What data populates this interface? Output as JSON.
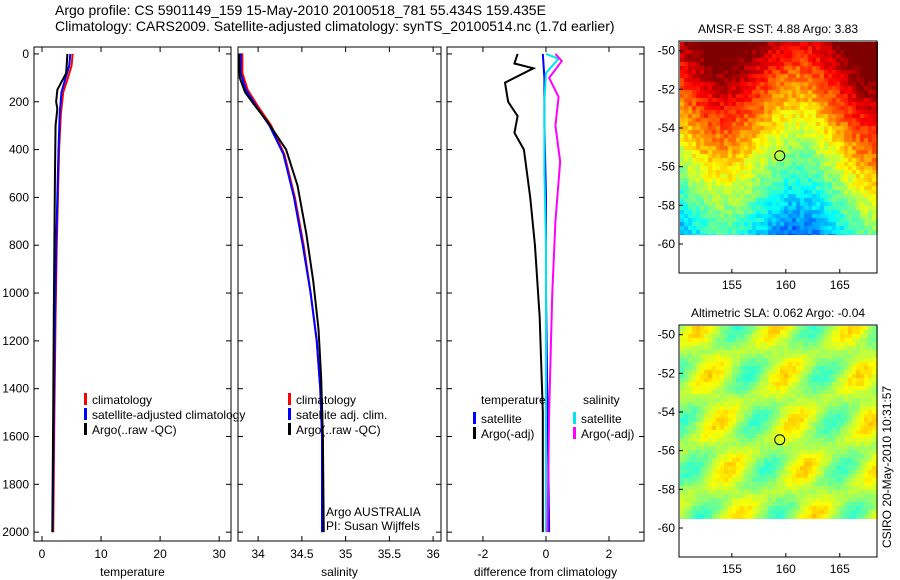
{
  "title_line1": "Argo profile: CS 5901149_159 15-May-2010 20100518_781 55.434S 159.435E",
  "title_line2": "Climatology: CARS2009. Satellite-adjusted climatology: synTS_20100514.nc (1.7d earlier)",
  "credit": "CSIRO 20-May-2010 10:31:57",
  "chart_data": [
    {
      "type": "line",
      "xlabel": "temperature",
      "ylabel": "",
      "xlim": [
        -1.35,
        32
      ],
      "ylim": [
        2037,
        -29
      ],
      "xticks": [
        0,
        10,
        20,
        30
      ],
      "yticks": [
        0,
        200,
        400,
        600,
        800,
        1000,
        1200,
        1400,
        1600,
        1800,
        2000
      ],
      "legend": [
        "climatology",
        "satellite-adjusted climatology",
        "Argo(..raw -QC)"
      ],
      "series": [
        {
          "name": "climatology",
          "color": "#ff0000",
          "points": [
            [
              5.2,
              0
            ],
            [
              5.0,
              50
            ],
            [
              4.4,
              100
            ],
            [
              3.6,
              160
            ],
            [
              3.2,
              250
            ],
            [
              2.9,
              400
            ],
            [
              2.7,
              600
            ],
            [
              2.5,
              800
            ],
            [
              2.3,
              1100
            ],
            [
              2.1,
              1500
            ],
            [
              1.9,
              2000
            ]
          ]
        },
        {
          "name": "satellite-adjusted climatology",
          "color": "#0000ff",
          "points": [
            [
              4.8,
              0
            ],
            [
              4.6,
              50
            ],
            [
              4.0,
              100
            ],
            [
              3.3,
              160
            ],
            [
              3.0,
              250
            ],
            [
              2.8,
              400
            ],
            [
              2.6,
              600
            ],
            [
              2.4,
              800
            ],
            [
              2.2,
              1100
            ],
            [
              2.0,
              1500
            ],
            [
              1.8,
              2000
            ]
          ]
        },
        {
          "name": "Argo(..raw -QC)",
          "color": "#000000",
          "points": [
            [
              4.3,
              0
            ],
            [
              4.2,
              40
            ],
            [
              4.1,
              80
            ],
            [
              2.6,
              150
            ],
            [
              2.4,
              200
            ],
            [
              2.6,
              230
            ],
            [
              2.3,
              300
            ],
            [
              2.2,
              500
            ],
            [
              2.1,
              800
            ],
            [
              2.0,
              1100
            ],
            [
              1.9,
              1500
            ],
            [
              1.75,
              2000
            ]
          ]
        }
      ]
    },
    {
      "type": "line",
      "xlabel": "salinity",
      "xlim": [
        33.77,
        36.09
      ],
      "ylim": [
        2037,
        -29
      ],
      "xticks": [
        34,
        34.5,
        35,
        35.5,
        36
      ],
      "yticks": [],
      "legend": [
        "climatology",
        "satellite adj. clim.",
        "Argo(..raw -QC)"
      ],
      "annotation": [
        "Argo AUSTRALIA",
        "PI: Susan Wijffels"
      ],
      "series": [
        {
          "name": "climatology",
          "color": "#ff0000",
          "points": [
            [
              33.82,
              0
            ],
            [
              33.82,
              80
            ],
            [
              33.88,
              150
            ],
            [
              34.0,
              220
            ],
            [
              34.15,
              300
            ],
            [
              34.3,
              420
            ],
            [
              34.42,
              600
            ],
            [
              34.52,
              800
            ],
            [
              34.6,
              1000
            ],
            [
              34.67,
              1200
            ],
            [
              34.71,
              1400
            ],
            [
              34.73,
              1600
            ],
            [
              34.73,
              2000
            ]
          ]
        },
        {
          "name": "satellite adj. clim.",
          "color": "#0000ff",
          "points": [
            [
              33.8,
              0
            ],
            [
              33.8,
              80
            ],
            [
              33.86,
              150
            ],
            [
              33.98,
              220
            ],
            [
              34.13,
              300
            ],
            [
              34.29,
              420
            ],
            [
              34.41,
              600
            ],
            [
              34.51,
              800
            ],
            [
              34.6,
              1000
            ],
            [
              34.67,
              1200
            ],
            [
              34.71,
              1400
            ],
            [
              34.73,
              1600
            ],
            [
              34.73,
              2000
            ]
          ]
        },
        {
          "name": "Argo(..raw -QC)",
          "color": "#000000",
          "points": [
            [
              33.78,
              0
            ],
            [
              33.79,
              100
            ],
            [
              33.85,
              160
            ],
            [
              33.95,
              210
            ],
            [
              34.1,
              280
            ],
            [
              34.32,
              400
            ],
            [
              34.45,
              550
            ],
            [
              34.55,
              750
            ],
            [
              34.63,
              950
            ],
            [
              34.69,
              1150
            ],
            [
              34.72,
              1350
            ],
            [
              34.74,
              1600
            ],
            [
              34.75,
              2000
            ]
          ]
        }
      ]
    },
    {
      "type": "line",
      "xlabel": "difference from climatology",
      "xlim": [
        -3.14,
        3.11
      ],
      "ylim": [
        2037,
        -29
      ],
      "xticks": [
        -2,
        0,
        2
      ],
      "yticks": [],
      "legend_titles": [
        "temperature",
        "salinity"
      ],
      "legend": [
        "satellite",
        "Argo(-adj)",
        "satellite",
        "Argo(-adj)"
      ],
      "series": [
        {
          "name": "temperature satellite",
          "color": "#0000ff",
          "points": [
            [
              -0.1,
              0
            ],
            [
              -0.05,
              100
            ],
            [
              -0.05,
              300
            ],
            [
              0,
              600
            ],
            [
              0,
              1000
            ],
            [
              0.05,
              1500
            ],
            [
              0.1,
              2000
            ]
          ]
        },
        {
          "name": "temperature Argo(-adj)",
          "color": "#000000",
          "points": [
            [
              -0.9,
              0
            ],
            [
              -1.0,
              40
            ],
            [
              -0.4,
              60
            ],
            [
              -1.3,
              120
            ],
            [
              -1.2,
              200
            ],
            [
              -0.9,
              260
            ],
            [
              -1.0,
              330
            ],
            [
              -0.7,
              400
            ],
            [
              -0.5,
              600
            ],
            [
              -0.35,
              800
            ],
            [
              -0.2,
              1100
            ],
            [
              -0.1,
              1500
            ],
            [
              -0.1,
              2000
            ]
          ]
        },
        {
          "name": "salinity satellite",
          "color": "#00e5ee",
          "points": [
            [
              0,
              0
            ],
            [
              0.4,
              20
            ],
            [
              0,
              80
            ],
            [
              -0.05,
              200
            ],
            [
              -0.05,
              500
            ],
            [
              0,
              800
            ],
            [
              0,
              1200
            ],
            [
              0,
              2000
            ]
          ]
        },
        {
          "name": "salinity Argo(-adj)",
          "color": "#ff00ff",
          "points": [
            [
              0.3,
              0
            ],
            [
              0.5,
              30
            ],
            [
              0.1,
              100
            ],
            [
              0.4,
              180
            ],
            [
              0.3,
              300
            ],
            [
              0.45,
              450
            ],
            [
              0.3,
              700
            ],
            [
              0.2,
              1000
            ],
            [
              0.1,
              1500
            ],
            [
              0.05,
              2000
            ]
          ]
        }
      ]
    },
    {
      "type": "heatmap",
      "title": "AMSR-E SST: 4.88 Argo: 3.83",
      "xlim": [
        150.1,
        168.45
      ],
      "ylim": [
        -61.5,
        -49.5
      ],
      "xticks": [
        155,
        160,
        165
      ],
      "yticks": [
        -50,
        -52,
        -54,
        -56,
        -58,
        -60
      ],
      "marker": [
        159.435,
        -55.434
      ],
      "colormap": "jet"
    },
    {
      "type": "heatmap",
      "title": "Altimetric SLA: 0.062 Argo: -0.04",
      "xlim": [
        150.1,
        168.45
      ],
      "ylim": [
        -61.5,
        -49.5
      ],
      "xticks": [
        155,
        160,
        165
      ],
      "yticks": [
        -50,
        -52,
        -54,
        -56,
        -58,
        -60
      ],
      "marker": [
        159.435,
        -55.434
      ],
      "colormap": "jet"
    }
  ]
}
